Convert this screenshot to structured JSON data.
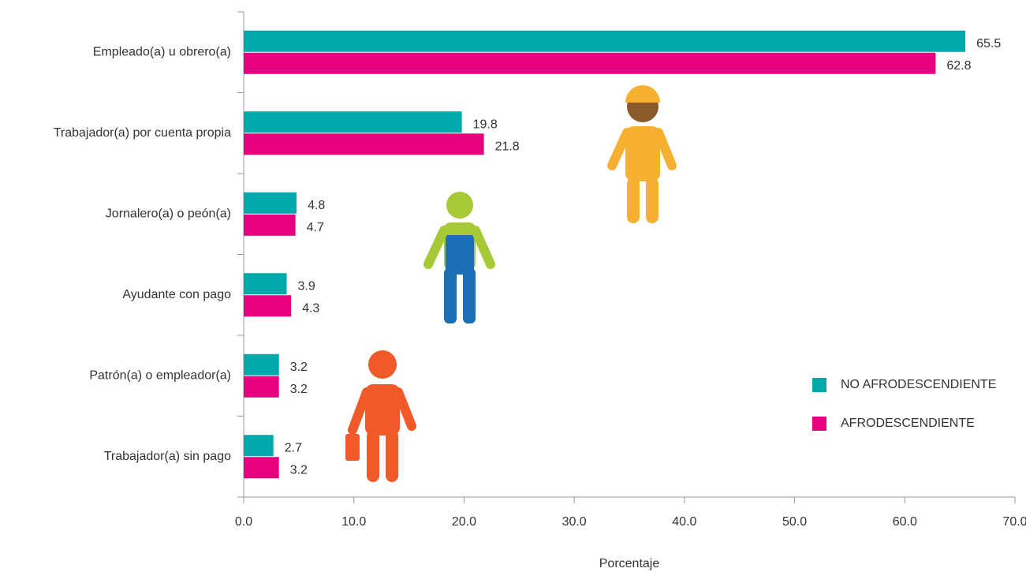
{
  "chart_data": {
    "type": "hbar",
    "categories": [
      "Empleado(a) u obrero(a)",
      "Trabajador(a) por cuenta propia",
      "Jornalero(a) o peón(a)",
      "Ayudante con pago",
      "Patrón(a) o empleador(a)",
      "Trabajador(a) sin pago"
    ],
    "series": [
      {
        "name": "NO AFRODESCENDIENTE",
        "color": "#00a9a9",
        "values": [
          65.5,
          19.8,
          4.8,
          3.9,
          3.2,
          2.7
        ]
      },
      {
        "name": "AFRODESCENDIENTE",
        "color": "#e6007e",
        "values": [
          62.8,
          21.8,
          4.7,
          4.3,
          3.2,
          3.2
        ]
      }
    ],
    "xlim": [
      0,
      70
    ],
    "xticks": [
      {
        "value": 0,
        "label": "0.0"
      },
      {
        "value": 10,
        "label": "10.0"
      },
      {
        "value": 20,
        "label": "20.0"
      },
      {
        "value": 30,
        "label": "30.0"
      },
      {
        "value": 40,
        "label": "40.0"
      },
      {
        "value": 50,
        "label": "50.0"
      },
      {
        "value": 60,
        "label": "60.0"
      },
      {
        "value": 70,
        "label": "70.0"
      }
    ],
    "xlabel": "Porcentaje",
    "legend": "right"
  }
}
